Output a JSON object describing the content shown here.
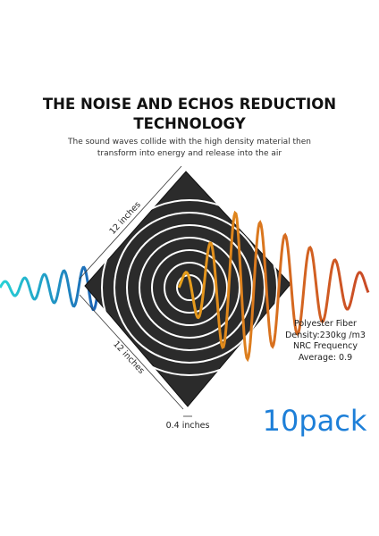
{
  "header": {
    "title_lines": [
      "THE NOISE AND ECHOS REDUCTION",
      "TECHNOLOGY"
    ],
    "subtitle_lines": [
      "The sound waves collide with the high density material then",
      "transform into energy and release into the air"
    ]
  },
  "dimensions": {
    "top_edge": "12 inches",
    "bottom_edge": "12 inches",
    "thickness": "0.4 inches"
  },
  "specs": [
    "Polyester Fiber",
    "Density:230kg /m3",
    "NRC Frequency",
    "Average: 0.9"
  ],
  "badge": "10pack"
}
